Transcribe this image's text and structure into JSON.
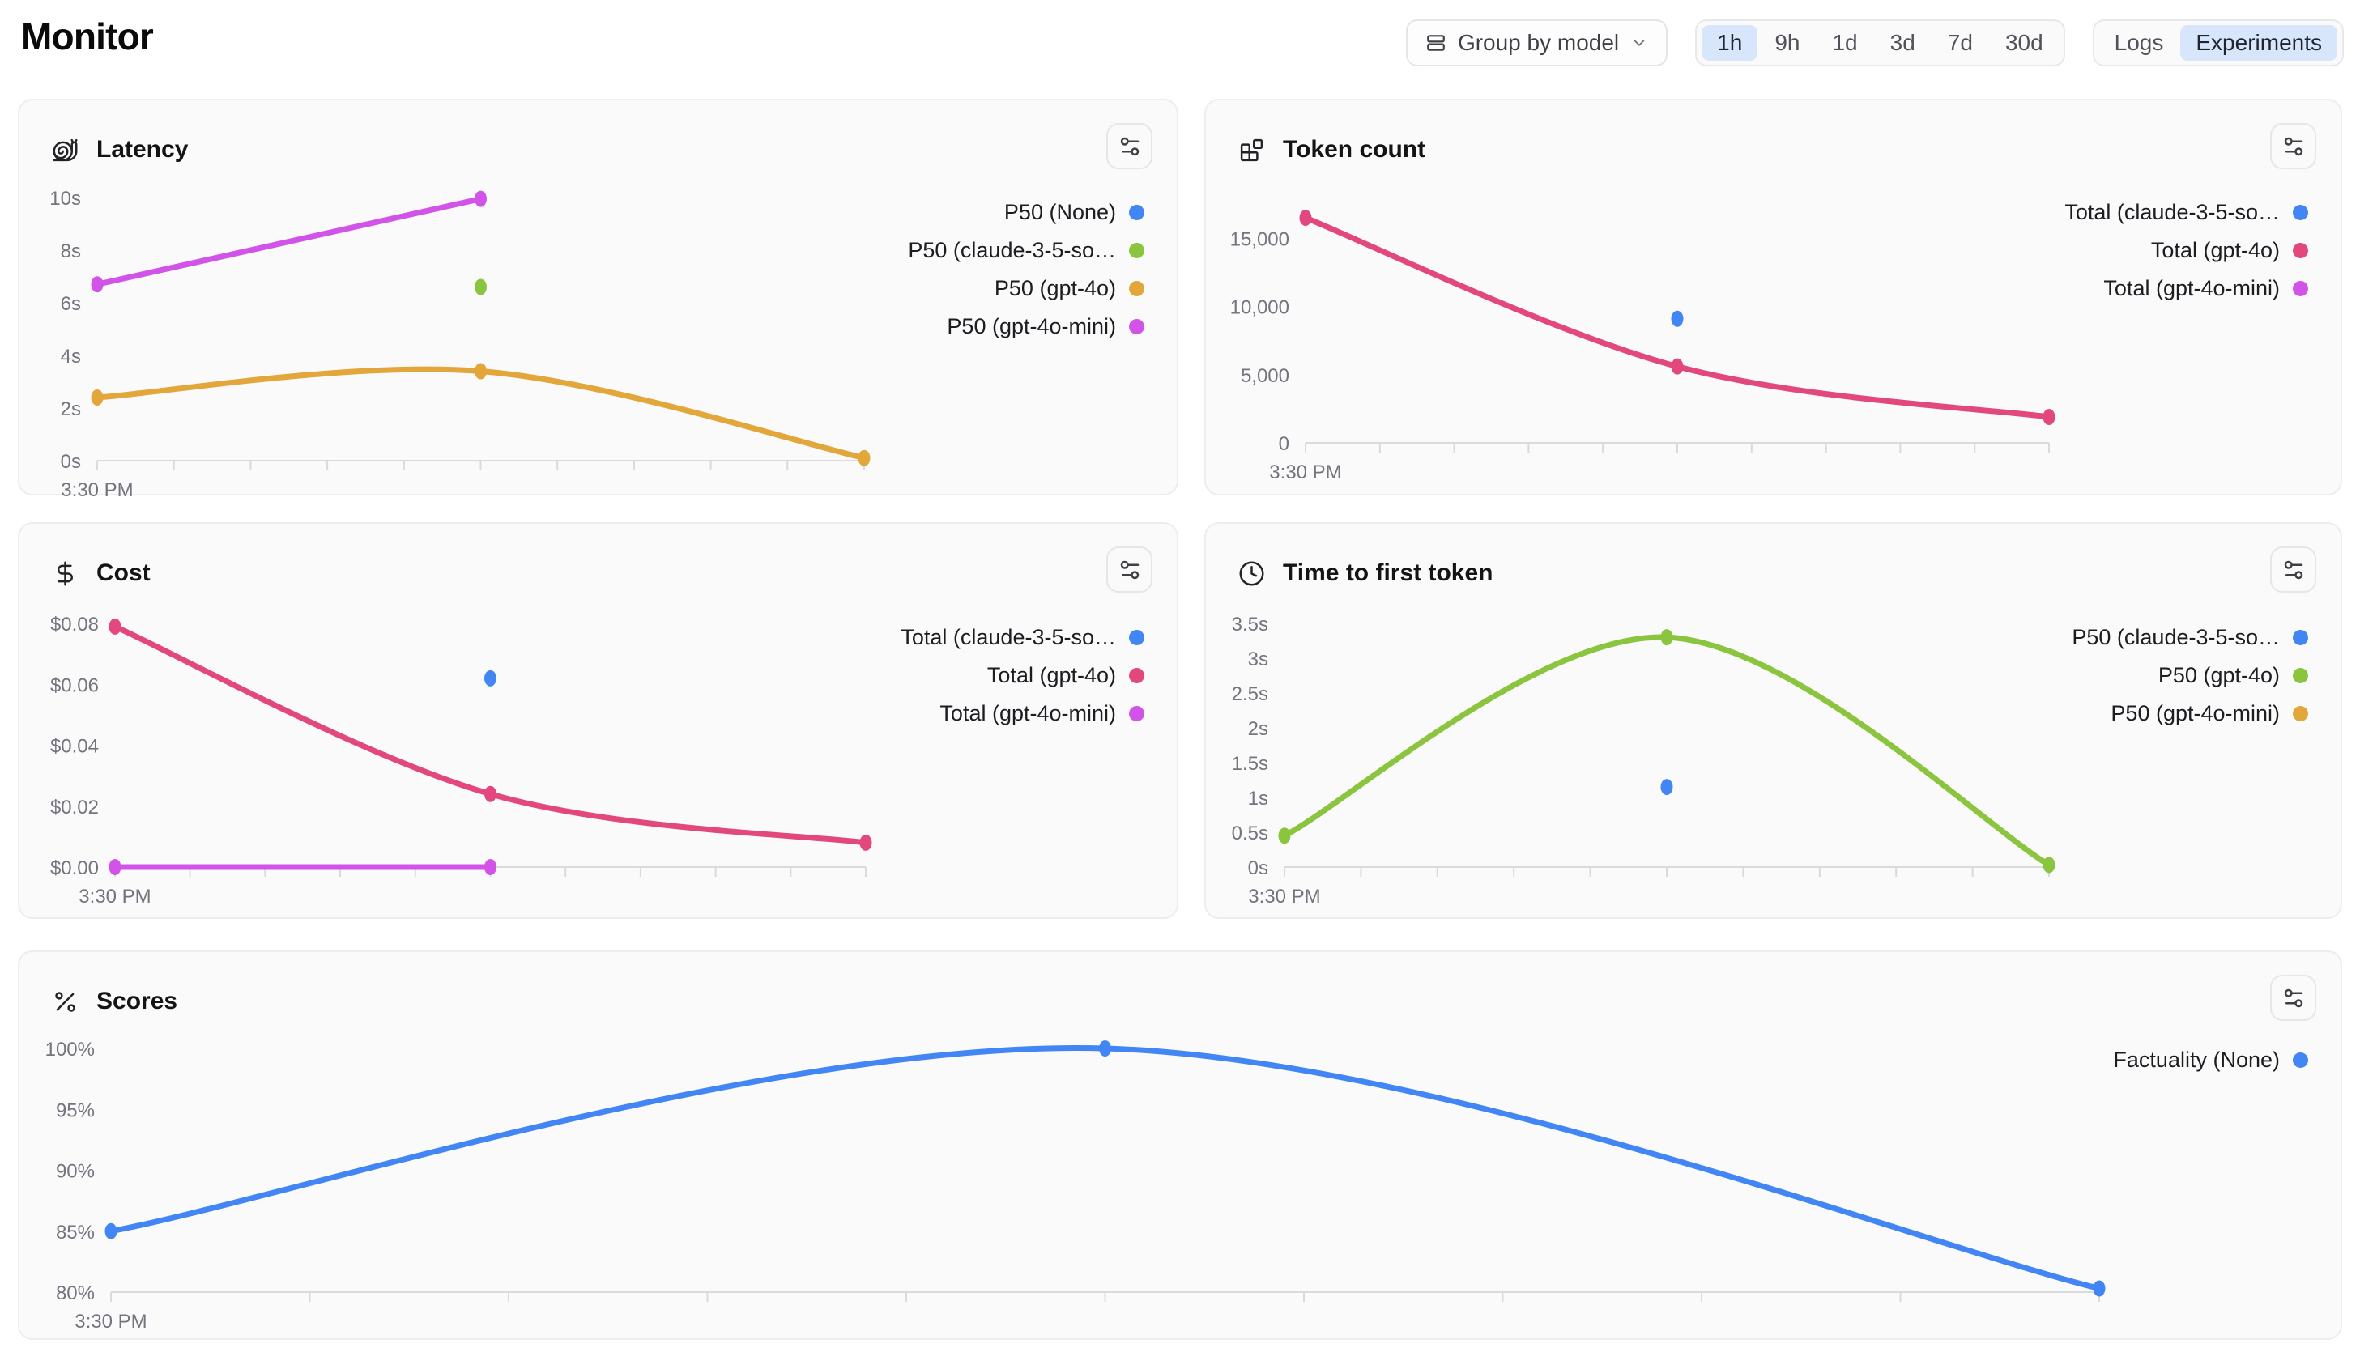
{
  "header": {
    "title": "Monitor",
    "group_by_label": "Group by model",
    "time_ranges": [
      "1h",
      "9h",
      "1d",
      "3d",
      "7d",
      "30d"
    ],
    "active_time_range": "1h",
    "view_toggle": [
      "Logs",
      "Experiments"
    ],
    "active_view": "Experiments"
  },
  "colors": {
    "blue": "#4285f4",
    "green": "#8bc53f",
    "amber": "#e2a63b",
    "purple": "#d253e8",
    "pink": "#e2487e",
    "active_chip_bg": "#d8e6fb"
  },
  "chart_data": [
    {
      "id": "latency",
      "title": "Latency",
      "icon": "snail-icon",
      "type": "line",
      "x_axis": {
        "start_label": "3:30 PM",
        "ticks": 11
      },
      "ylim": [
        0,
        10
      ],
      "y_ticks": [
        {
          "v": 10,
          "label": "10s"
        },
        {
          "v": 8,
          "label": "8s"
        },
        {
          "v": 6,
          "label": "6s"
        },
        {
          "v": 4,
          "label": "4s"
        },
        {
          "v": 2,
          "label": "2s"
        },
        {
          "v": 0,
          "label": "0s"
        }
      ],
      "series": [
        {
          "name": "P50 (None)",
          "color_key": "blue",
          "points": []
        },
        {
          "name": "P50 (claude-3-5-so…",
          "color_key": "green",
          "points": [
            {
              "x": 0.5,
              "y": 6.6
            }
          ]
        },
        {
          "name": "P50 (gpt-4o)",
          "color_key": "amber",
          "points": [
            {
              "x": 0,
              "y": 2.4
            },
            {
              "x": 0.5,
              "y": 3.4
            },
            {
              "x": 1,
              "y": 0.1
            }
          ]
        },
        {
          "name": "P50 (gpt-4o-mini)",
          "color_key": "purple",
          "points": [
            {
              "x": 0,
              "y": 6.7
            },
            {
              "x": 0.5,
              "y": 9.95
            }
          ]
        }
      ]
    },
    {
      "id": "tokens",
      "title": "Token count",
      "icon": "blocks-icon",
      "type": "line",
      "x_axis": {
        "start_label": "3:30 PM",
        "ticks": 11
      },
      "ylim": [
        0,
        16800
      ],
      "y_ticks": [
        {
          "v": 15000,
          "label": "15,000"
        },
        {
          "v": 10000,
          "label": "10,000"
        },
        {
          "v": 5000,
          "label": "5,000"
        },
        {
          "v": 0,
          "label": "0"
        }
      ],
      "series": [
        {
          "name": "Total (claude-3-5-so…",
          "color_key": "blue",
          "points": [
            {
              "x": 0.5,
              "y": 9100
            }
          ]
        },
        {
          "name": "Total (gpt-4o)",
          "color_key": "pink",
          "points": [
            {
              "x": 0,
              "y": 16500
            },
            {
              "x": 0.5,
              "y": 5600
            },
            {
              "x": 1,
              "y": 1900
            }
          ]
        },
        {
          "name": "Total (gpt-4o-mini)",
          "color_key": "purple",
          "points": []
        }
      ]
    },
    {
      "id": "cost",
      "title": "Cost",
      "icon": "dollar-icon",
      "type": "line",
      "x_axis": {
        "start_label": "3:30 PM",
        "ticks": 11
      },
      "ylim": [
        0,
        0.0835
      ],
      "y_ticks": [
        {
          "v": 0.08,
          "label": "$0.08"
        },
        {
          "v": 0.06,
          "label": "$0.06"
        },
        {
          "v": 0.04,
          "label": "$0.04"
        },
        {
          "v": 0.02,
          "label": "$0.02"
        },
        {
          "v": 0,
          "label": "$0.00"
        }
      ],
      "series": [
        {
          "name": "Total (claude-3-5-so…",
          "color_key": "blue",
          "points": [
            {
              "x": 0.5,
              "y": 0.062
            }
          ]
        },
        {
          "name": "Total (gpt-4o)",
          "color_key": "pink",
          "points": [
            {
              "x": 0,
              "y": 0.079
            },
            {
              "x": 0.5,
              "y": 0.024
            },
            {
              "x": 1,
              "y": 0.008
            }
          ]
        },
        {
          "name": "Total (gpt-4o-mini)",
          "color_key": "purple",
          "points": [
            {
              "x": 0,
              "y": 0
            },
            {
              "x": 0.5,
              "y": 0
            }
          ]
        }
      ]
    },
    {
      "id": "ttft",
      "title": "Time to first token",
      "icon": "clock-icon",
      "type": "line",
      "x_axis": {
        "start_label": "3:30 PM",
        "ticks": 11
      },
      "ylim": [
        0,
        3.65
      ],
      "y_ticks": [
        {
          "v": 3.5,
          "label": "3.5s"
        },
        {
          "v": 3,
          "label": "3s"
        },
        {
          "v": 2.5,
          "label": "2.5s"
        },
        {
          "v": 2,
          "label": "2s"
        },
        {
          "v": 1.5,
          "label": "1.5s"
        },
        {
          "v": 1,
          "label": "1s"
        },
        {
          "v": 0.5,
          "label": "0.5s"
        },
        {
          "v": 0,
          "label": "0s"
        }
      ],
      "series": [
        {
          "name": "P50 (claude-3-5-so…",
          "color_key": "blue",
          "points": [
            {
              "x": 0.5,
              "y": 1.15
            }
          ]
        },
        {
          "name": "P50 (gpt-4o)",
          "color_key": "green",
          "points": [
            {
              "x": 0,
              "y": 0.45
            },
            {
              "x": 0.5,
              "y": 3.3
            },
            {
              "x": 1,
              "y": 0.03
            }
          ]
        },
        {
          "name": "P50 (gpt-4o-mini)",
          "color_key": "amber",
          "points": []
        }
      ]
    },
    {
      "id": "scores",
      "title": "Scores",
      "icon": "percent-icon",
      "type": "line",
      "x_axis": {
        "start_label": "3:30 PM",
        "ticks": 11
      },
      "ylim": [
        80,
        101
      ],
      "y_ticks": [
        {
          "v": 100,
          "label": "100%"
        },
        {
          "v": 95,
          "label": "95%"
        },
        {
          "v": 90,
          "label": "90%"
        },
        {
          "v": 85,
          "label": "85%"
        },
        {
          "v": 80,
          "label": "80%"
        }
      ],
      "series": [
        {
          "name": "Factuality (None)",
          "color_key": "blue",
          "points": [
            {
              "x": 0,
              "y": 85
            },
            {
              "x": 0.5,
              "y": 100
            },
            {
              "x": 1,
              "y": 80.3
            }
          ]
        }
      ]
    }
  ]
}
